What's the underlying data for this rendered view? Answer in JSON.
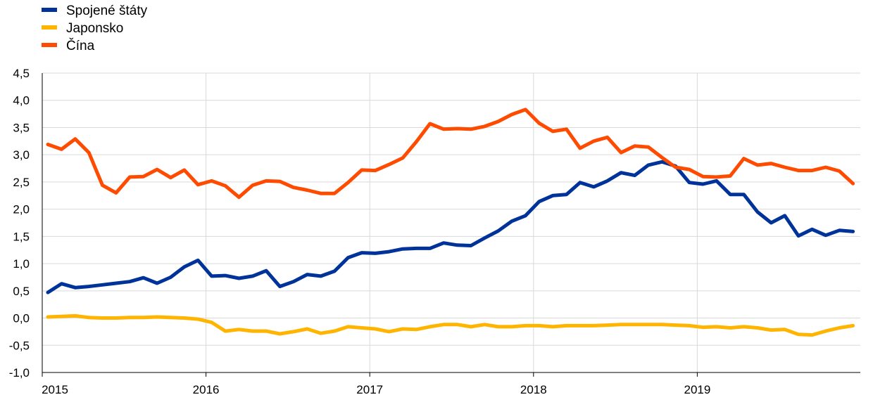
{
  "chart_data": {
    "type": "line",
    "title": "",
    "xlabel": "",
    "ylabel": "",
    "ylim": [
      -1.0,
      4.5
    ],
    "yticks": [
      -1.0,
      -0.5,
      0.0,
      0.5,
      1.0,
      1.5,
      2.0,
      2.5,
      3.0,
      3.5,
      4.0,
      4.5
    ],
    "ytick_labels": [
      "-1,0",
      "-0,5",
      "0,0",
      "0,5",
      "1,0",
      "1,5",
      "2,0",
      "2,5",
      "3,0",
      "3,5",
      "4,0",
      "4,5"
    ],
    "xticks": [
      "2015",
      "2016",
      "2017",
      "2018",
      "2019"
    ],
    "x_start": "2015-01",
    "x_end": "2019-12",
    "grid": true,
    "legend": "top-left",
    "series": [
      {
        "name": "Spojené štáty",
        "color": "#003399",
        "values": [
          0.47,
          0.63,
          0.56,
          0.58,
          0.61,
          0.64,
          0.67,
          0.74,
          0.64,
          0.75,
          0.94,
          1.06,
          0.77,
          0.78,
          0.73,
          0.77,
          0.87,
          0.58,
          0.67,
          0.8,
          0.77,
          0.86,
          1.11,
          1.2,
          1.19,
          1.22,
          1.27,
          1.28,
          1.28,
          1.38,
          1.34,
          1.33,
          1.47,
          1.6,
          1.78,
          1.88,
          2.14,
          2.25,
          2.27,
          2.49,
          2.41,
          2.52,
          2.67,
          2.62,
          2.81,
          2.87,
          2.79,
          2.49,
          2.46,
          2.52,
          2.27,
          2.27,
          1.95,
          1.75,
          1.88,
          1.51,
          1.63,
          1.52,
          1.61,
          1.59
        ]
      },
      {
        "name": "Japonsko",
        "color": "#ffb400",
        "values": [
          0.02,
          0.03,
          0.04,
          0.01,
          0.0,
          0.0,
          0.01,
          0.01,
          0.02,
          0.01,
          0.0,
          -0.02,
          -0.08,
          -0.24,
          -0.21,
          -0.24,
          -0.24,
          -0.29,
          -0.25,
          -0.2,
          -0.28,
          -0.24,
          -0.16,
          -0.18,
          -0.2,
          -0.25,
          -0.2,
          -0.21,
          -0.16,
          -0.12,
          -0.12,
          -0.16,
          -0.12,
          -0.16,
          -0.16,
          -0.14,
          -0.14,
          -0.16,
          -0.14,
          -0.14,
          -0.14,
          -0.13,
          -0.12,
          -0.12,
          -0.12,
          -0.12,
          -0.13,
          -0.14,
          -0.17,
          -0.16,
          -0.18,
          -0.16,
          -0.18,
          -0.22,
          -0.21,
          -0.3,
          -0.31,
          -0.24,
          -0.18,
          -0.14
        ]
      },
      {
        "name": "Čína",
        "color": "#ff4b00",
        "values": [
          3.19,
          3.1,
          3.29,
          3.04,
          2.44,
          2.3,
          2.59,
          2.6,
          2.73,
          2.58,
          2.72,
          2.45,
          2.52,
          2.43,
          2.22,
          2.44,
          2.52,
          2.51,
          2.4,
          2.35,
          2.29,
          2.29,
          2.49,
          2.72,
          2.71,
          2.82,
          2.94,
          3.24,
          3.57,
          3.47,
          3.48,
          3.47,
          3.52,
          3.61,
          3.74,
          3.83,
          3.58,
          3.43,
          3.47,
          3.12,
          3.25,
          3.32,
          3.04,
          3.16,
          3.14,
          2.95,
          2.77,
          2.73,
          2.6,
          2.59,
          2.61,
          2.93,
          2.81,
          2.84,
          2.77,
          2.71,
          2.71,
          2.77,
          2.7,
          2.47
        ]
      }
    ]
  }
}
